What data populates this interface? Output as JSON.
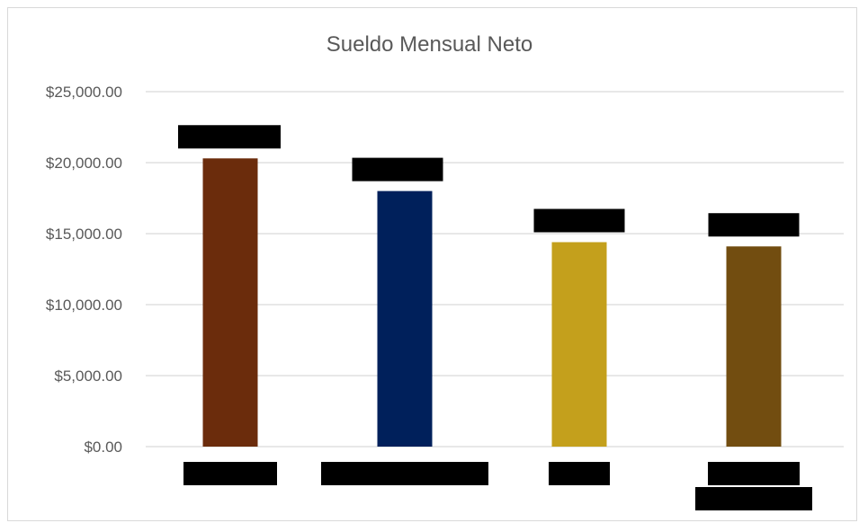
{
  "chart_data": {
    "type": "bar",
    "title": "Sueldo Mensual Neto",
    "categories": [
      "",
      "",
      "",
      ""
    ],
    "values": [
      20300,
      18000,
      14400,
      14100
    ],
    "colors": [
      "#6b2c0c",
      "#00205b",
      "#c4a01c",
      "#724d10"
    ],
    "yticks": [
      "$0.00",
      "$5,000.00",
      "$10,000.00",
      "$15,000.00",
      "$20,000.00",
      "$25,000.00"
    ],
    "ylim": [
      0,
      25000
    ],
    "grid": true,
    "legend": "none"
  }
}
